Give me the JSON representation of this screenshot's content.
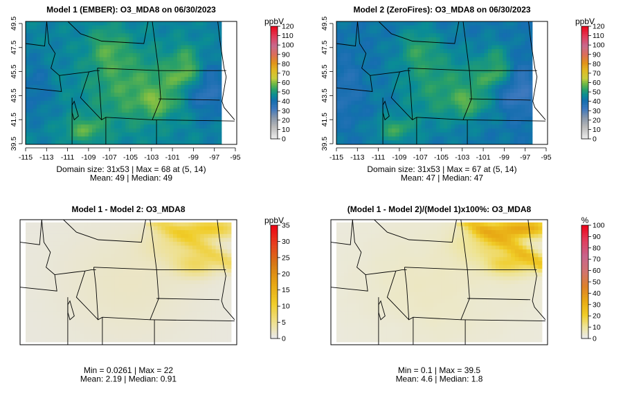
{
  "chart_data": [
    {
      "type": "heatmap",
      "title": "Model 1 (EMBER): O3_MDA8 on 06/30/2023",
      "x_ticks": [
        "-115",
        "-113",
        "-111",
        "-109",
        "-107",
        "-105",
        "-103",
        "-101",
        "-99",
        "-97",
        "-95"
      ],
      "y_ticks": [
        "39.5",
        "41.5",
        "43.5",
        "45.5",
        "47.5",
        "49.5"
      ],
      "xlim": [
        -115,
        -95
      ],
      "ylim": [
        39.5,
        49.5
      ],
      "colorbar": {
        "unit": "ppbV",
        "ticks": [
          "0",
          "10",
          "20",
          "30",
          "40",
          "50",
          "60",
          "70",
          "80",
          "90",
          "100",
          "110",
          "120"
        ],
        "range": [
          0,
          120
        ]
      },
      "stats": [
        "Domain size: 31x53 | Max = 68 at (5, 14)",
        "Mean: 49 |  Median: 49"
      ],
      "summary": {
        "domain_size": "31x53",
        "max": 68,
        "max_at": "(5, 14)",
        "mean": 49,
        "median": 49
      }
    },
    {
      "type": "heatmap",
      "title": "Model 2 (ZeroFires): O3_MDA8 on 06/30/2023",
      "x_ticks": [
        "-115",
        "-113",
        "-111",
        "-109",
        "-107",
        "-105",
        "-103",
        "-101",
        "-99",
        "-97",
        "-95"
      ],
      "y_ticks": [
        "39.5",
        "41.5",
        "43.5",
        "45.5",
        "47.5",
        "49.5"
      ],
      "xlim": [
        -115,
        -95
      ],
      "ylim": [
        39.5,
        49.5
      ],
      "colorbar": {
        "unit": "ppbV",
        "ticks": [
          "0",
          "10",
          "20",
          "30",
          "40",
          "50",
          "60",
          "70",
          "80",
          "90",
          "100",
          "110",
          "120"
        ],
        "range": [
          0,
          120
        ]
      },
      "stats": [
        "Domain size: 31x53 | Max = 67 at (5, 14)",
        "Mean: 47 |  Median: 47"
      ],
      "summary": {
        "domain_size": "31x53",
        "max": 67,
        "max_at": "(5, 14)",
        "mean": 47,
        "median": 47
      }
    },
    {
      "type": "heatmap",
      "title": "Model 1 - Model 2: O3_MDA8",
      "colorbar": {
        "unit": "ppbV",
        "ticks": [
          "0",
          "5",
          "10",
          "15",
          "20",
          "25",
          "30",
          "35"
        ],
        "range": [
          0,
          35
        ]
      },
      "stats": [
        "Min = 0.0261 | Max = 22",
        "Mean: 2.19 |  Median: 0.91"
      ],
      "summary": {
        "min": 0.0261,
        "max": 22,
        "mean": 2.19,
        "median": 0.91
      }
    },
    {
      "type": "heatmap",
      "title": "(Model 1 - Model 2)/(Model 1)x100%: O3_MDA8",
      "colorbar": {
        "unit": "%",
        "ticks": [
          "0",
          "10",
          "20",
          "30",
          "40",
          "50",
          "60",
          "70",
          "80",
          "90",
          "100"
        ],
        "range": [
          0,
          100
        ]
      },
      "stats": [
        "Min = 0.1 | Max = 39.5",
        "Mean: 4.6 |  Median: 1.8"
      ],
      "summary": {
        "min": 0.1,
        "max": 39.5,
        "mean": 4.6,
        "median": 1.8
      }
    }
  ]
}
